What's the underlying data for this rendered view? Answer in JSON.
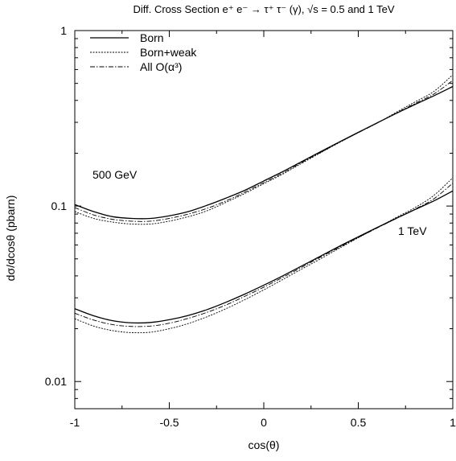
{
  "chart_data": {
    "type": "line",
    "title": "Diff. Cross Section e⁺ e⁻ → τ⁺ τ⁻ (γ), √s = 0.5 and 1 TeV",
    "xlabel": "cos(θ)",
    "ylabel": "dσ/dcosθ (pbarn)",
    "x_scale": "linear",
    "y_scale": "log",
    "xlim": [
      -1,
      1
    ],
    "ylim": [
      0.007,
      1
    ],
    "x_ticks": [
      "-1",
      "-0.5",
      "0",
      "0.5",
      "1"
    ],
    "y_ticks": [
      "0.01",
      "0.1",
      "1"
    ],
    "grid": false,
    "legend_position": "top-left",
    "legend": [
      {
        "label": "Born",
        "style": "solid"
      },
      {
        "label": "Born+weak",
        "style": "dotted"
      },
      {
        "label": "All O(α³)",
        "style": "dashdot"
      }
    ],
    "annotations": [
      "500 GeV",
      "1 TeV"
    ],
    "x": [
      -1.0,
      -0.9,
      -0.8,
      -0.7,
      -0.6,
      -0.5,
      -0.4,
      -0.3,
      -0.2,
      -0.1,
      0.0,
      0.1,
      0.2,
      0.3,
      0.4,
      0.5,
      0.6,
      0.7,
      0.8,
      0.9,
      1.0
    ],
    "series": [
      {
        "group": "500 GeV",
        "style": "solid",
        "values": [
          0.102,
          0.093,
          0.087,
          0.085,
          0.085,
          0.088,
          0.093,
          0.101,
          0.111,
          0.123,
          0.139,
          0.157,
          0.179,
          0.204,
          0.232,
          0.263,
          0.298,
          0.337,
          0.379,
          0.425,
          0.48
        ]
      },
      {
        "group": "500 GeV",
        "style": "dotted",
        "values": [
          0.093,
          0.085,
          0.081,
          0.079,
          0.079,
          0.082,
          0.087,
          0.094,
          0.105,
          0.118,
          0.134,
          0.152,
          0.175,
          0.201,
          0.23,
          0.262,
          0.297,
          0.342,
          0.392,
          0.45,
          0.56
        ]
      },
      {
        "group": "500 GeV",
        "style": "dashdot",
        "values": [
          0.098,
          0.089,
          0.084,
          0.082,
          0.082,
          0.085,
          0.09,
          0.097,
          0.107,
          0.12,
          0.136,
          0.154,
          0.177,
          0.202,
          0.231,
          0.262,
          0.297,
          0.338,
          0.384,
          0.435,
          0.52
        ]
      },
      {
        "group": "1 TeV",
        "style": "solid",
        "values": [
          0.026,
          0.0237,
          0.0222,
          0.0216,
          0.0217,
          0.0225,
          0.0238,
          0.0257,
          0.0283,
          0.0315,
          0.0354,
          0.04,
          0.0455,
          0.0518,
          0.059,
          0.0668,
          0.0755,
          0.085,
          0.0955,
          0.107,
          0.122
        ]
      },
      {
        "group": "1 TeV",
        "style": "dotted",
        "values": [
          0.0228,
          0.0207,
          0.0195,
          0.019,
          0.0191,
          0.02,
          0.0214,
          0.0234,
          0.026,
          0.0293,
          0.0333,
          0.0381,
          0.0437,
          0.05,
          0.0575,
          0.066,
          0.0752,
          0.086,
          0.098,
          0.115,
          0.145
        ]
      },
      {
        "group": "1 TeV",
        "style": "dashdot",
        "values": [
          0.0245,
          0.0224,
          0.0211,
          0.0206,
          0.0207,
          0.0215,
          0.0229,
          0.0248,
          0.0273,
          0.0306,
          0.0345,
          0.0392,
          0.0447,
          0.0511,
          0.0582,
          0.0662,
          0.075,
          0.0848,
          0.096,
          0.11,
          0.135
        ]
      }
    ]
  }
}
